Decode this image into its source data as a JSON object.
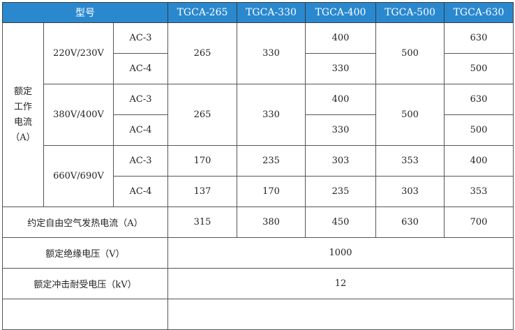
{
  "header": {
    "model_label": "型号",
    "models": [
      "TGCA-265",
      "TGCA-330",
      "TGCA-400",
      "TGCA-500",
      "TGCA-630"
    ]
  },
  "rated_current": {
    "label_lines": [
      "额定",
      "工作",
      "电流",
      "（A）"
    ],
    "groups": [
      {
        "voltage": "220V/230V",
        "rows": [
          {
            "category": "AC-3",
            "values": [
              "265",
              "330",
              "400",
              "500",
              "630"
            ]
          },
          {
            "category": "AC-4",
            "values": [
              "265",
              "330",
              "330",
              "500",
              "500"
            ]
          }
        ]
      },
      {
        "voltage": "380V/400V",
        "rows": [
          {
            "category": "AC-3",
            "values": [
              "265",
              "330",
              "400",
              "500",
              "630"
            ]
          },
          {
            "category": "AC-4",
            "values": [
              "265",
              "330",
              "330",
              "500",
              "500"
            ]
          }
        ]
      },
      {
        "voltage": "660V/690V",
        "rows": [
          {
            "category": "AC-3",
            "values": [
              "170",
              "235",
              "303",
              "353",
              "400"
            ]
          },
          {
            "category": "AC-4",
            "values": [
              "137",
              "170",
              "235",
              "303",
              "353"
            ]
          }
        ]
      }
    ]
  },
  "thermal_current": {
    "label": "约定自由空气发热电流（A）",
    "values": [
      "315",
      "380",
      "450",
      "630",
      "700"
    ]
  },
  "insulation_voltage": {
    "label": "额定绝缘电压（V）",
    "value": "1000"
  },
  "impulse_voltage": {
    "label": "额定冲击耐受电压（kV）",
    "value": "12"
  }
}
